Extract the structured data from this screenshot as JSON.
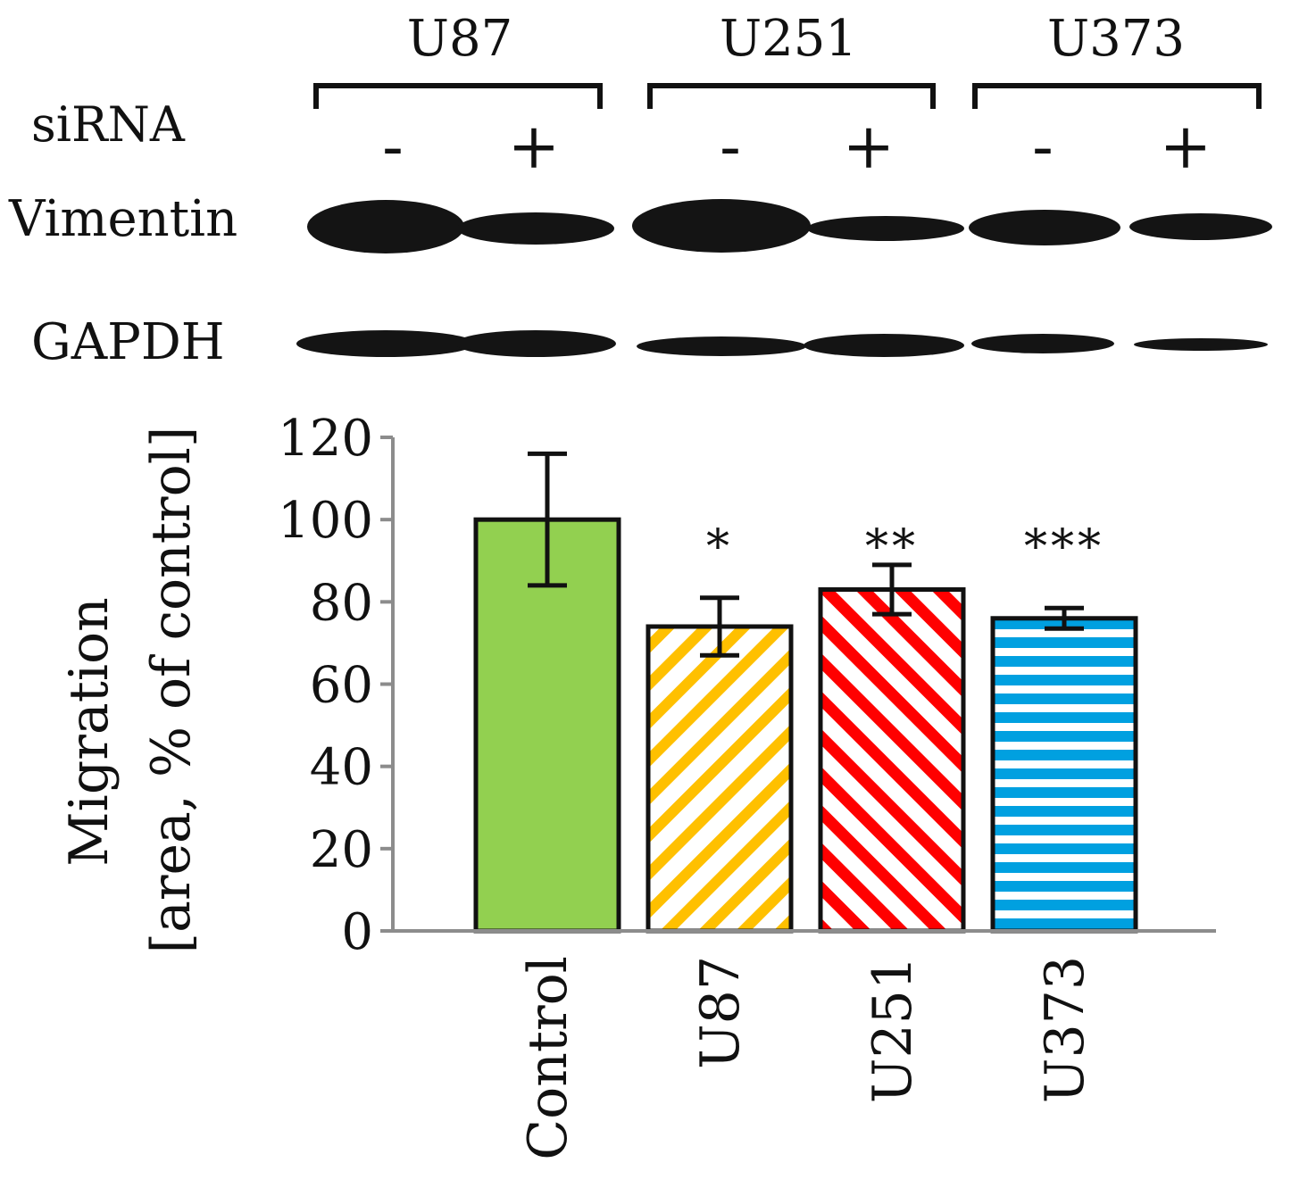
{
  "blot": {
    "cell_lines": [
      "U87",
      "U251",
      "U373"
    ],
    "sirna_label": "siRNA",
    "lane_signs": [
      "-",
      "+",
      "-",
      "+",
      "-",
      "+"
    ],
    "rows": [
      {
        "label": "Vimentin"
      },
      {
        "label": "GAPDH"
      }
    ]
  },
  "chart_data": {
    "type": "bar",
    "categories": [
      "Control",
      "U87",
      "U251",
      "U373"
    ],
    "values": [
      100,
      74,
      83,
      76
    ],
    "errors": [
      16,
      7,
      6,
      2.5
    ],
    "significance": [
      "",
      "*",
      "**",
      "***"
    ],
    "ylabel": [
      "Migration",
      "[area, % of control]"
    ],
    "xlabel": "",
    "ylim": [
      0,
      120
    ],
    "yticks": [
      0,
      20,
      40,
      60,
      80,
      100,
      120
    ],
    "grid": false,
    "legend": "none",
    "fills": [
      {
        "pattern": "solid",
        "color": "#92d050"
      },
      {
        "pattern": "diagonal-stripes",
        "color": "#ffc000"
      },
      {
        "pattern": "diagonal-stripes",
        "color": "#ff0000"
      },
      {
        "pattern": "horizontal-stripes",
        "color": "#00a0e0"
      }
    ]
  }
}
